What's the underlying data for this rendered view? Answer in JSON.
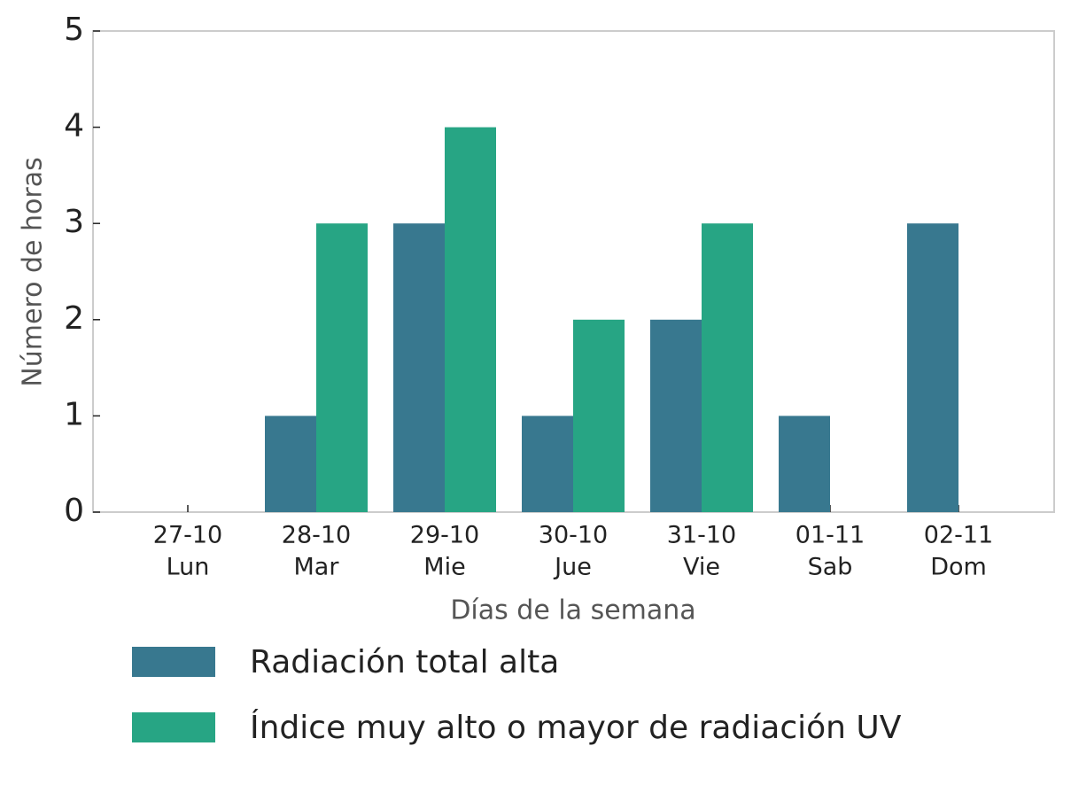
{
  "chart_data": {
    "type": "bar",
    "xlabel": "Días de la semana",
    "ylabel": "Número de horas",
    "categories": [
      "27-10",
      "28-10",
      "29-10",
      "30-10",
      "31-10",
      "01-11",
      "02-11"
    ],
    "weekdays": [
      "Lun",
      "Mar",
      "Mie",
      "Jue",
      "Vie",
      "Sab",
      "Dom"
    ],
    "series": [
      {
        "name": "Radiación total alta",
        "color": "#38788f",
        "values": [
          0,
          1,
          3,
          1,
          2,
          1,
          3
        ]
      },
      {
        "name": "Índice muy alto o mayor de radiación UV",
        "color": "#27a584",
        "values": [
          0,
          3,
          4,
          2,
          3,
          0,
          0
        ]
      }
    ],
    "ylim": [
      0,
      5
    ],
    "yticks": [
      0,
      1,
      2,
      3,
      4,
      5
    ],
    "grid": false,
    "legend": "bottom"
  }
}
